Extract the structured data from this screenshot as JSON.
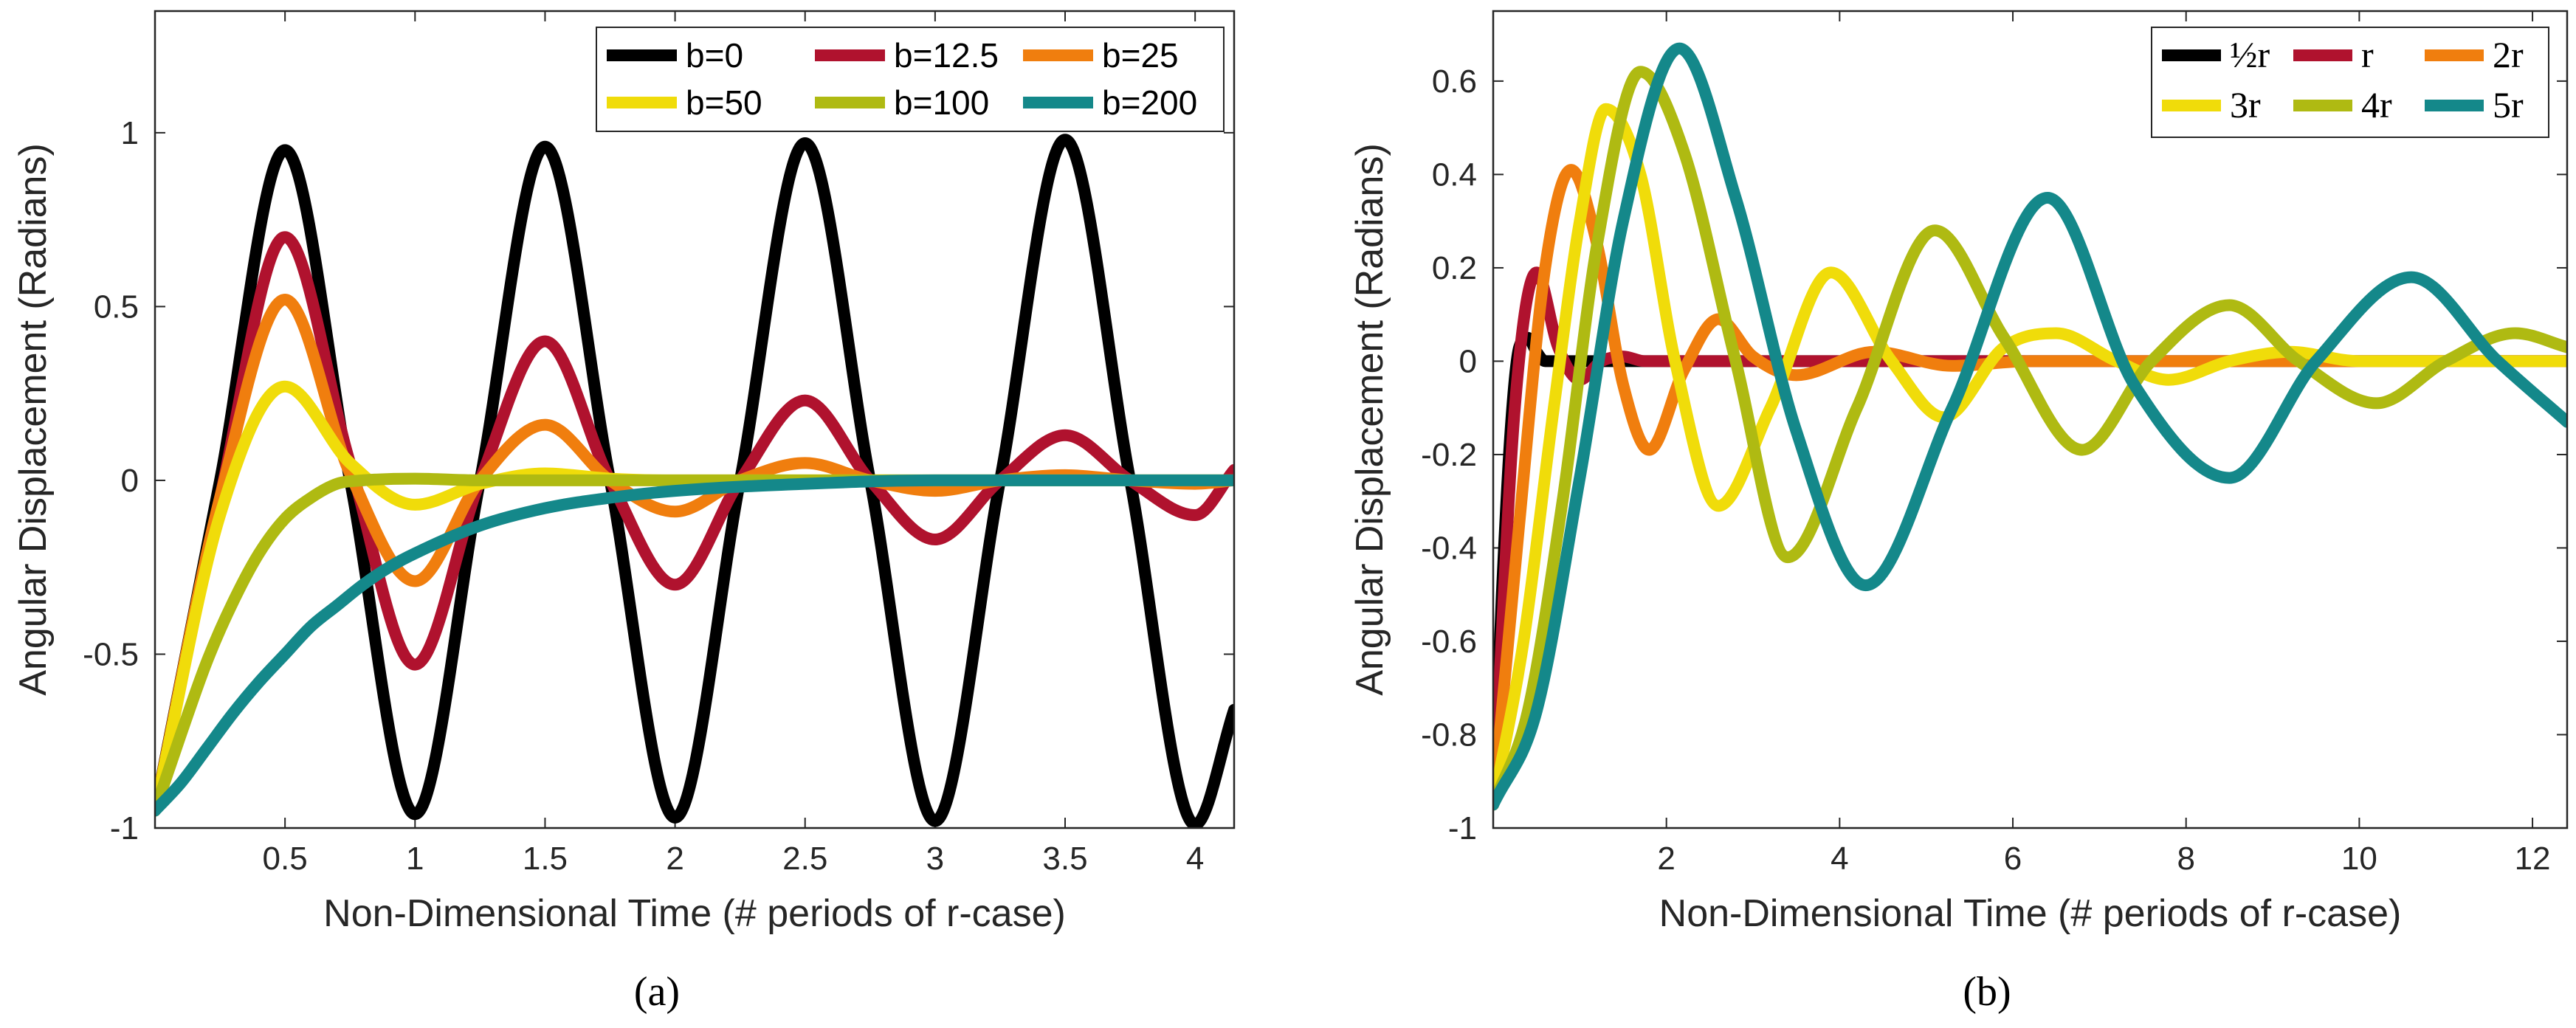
{
  "chart_data": [
    {
      "type": "line",
      "caption": "(a)",
      "xlabel": "Non-Dimensional Time (# periods of r-case)",
      "ylabel": "Angular Displacement (Radians)",
      "xlim": [
        0,
        4.15
      ],
      "ylim": [
        -1,
        1.35
      ],
      "xticks": [
        0.5,
        1,
        1.5,
        2,
        2.5,
        3,
        3.5,
        4
      ],
      "xtick_labels": [
        "0.5",
        "1",
        "1.5",
        "2",
        "2.5",
        "3",
        "3.5",
        "4"
      ],
      "yticks": [
        -1,
        -0.5,
        0,
        0.5,
        1
      ],
      "ytick_labels": [
        "-1",
        "-0.5",
        "0",
        "0.5",
        "1"
      ],
      "legend_position": "top-right",
      "series": [
        {
          "name": "b=0",
          "color": "#000000",
          "x": [
            0,
            0.25,
            0.5,
            0.75,
            1,
            1.25,
            1.5,
            1.75,
            2,
            2.25,
            2.5,
            2.75,
            3,
            3.25,
            3.5,
            3.75,
            4,
            4.15
          ],
          "y": [
            -0.95,
            0,
            0.95,
            0,
            -0.96,
            0,
            0.96,
            0,
            -0.97,
            0,
            0.97,
            0,
            -0.98,
            0,
            0.98,
            0,
            -0.99,
            -0.66
          ]
        },
        {
          "name": "b=12.5",
          "color": "#B0122E",
          "x": [
            0,
            0.25,
            0.5,
            0.75,
            1,
            1.25,
            1.5,
            1.75,
            2,
            2.25,
            2.5,
            2.75,
            3,
            3.25,
            3.5,
            3.75,
            4,
            4.15
          ],
          "y": [
            -0.95,
            -0.05,
            0.7,
            0.05,
            -0.53,
            0,
            0.4,
            0,
            -0.3,
            0,
            0.23,
            0,
            -0.17,
            0,
            0.13,
            0,
            -0.1,
            0.03
          ]
        },
        {
          "name": "b=25",
          "color": "#F07E0E",
          "x": [
            0,
            0.25,
            0.5,
            0.75,
            1,
            1.25,
            1.5,
            1.75,
            2,
            2.25,
            2.5,
            2.75,
            3,
            3.25,
            3.5,
            3.75,
            4,
            4.15
          ],
          "y": [
            -0.95,
            -0.05,
            0.52,
            0.02,
            -0.29,
            0,
            0.16,
            0,
            -0.09,
            0,
            0.05,
            0,
            -0.03,
            0,
            0.015,
            0,
            -0.01,
            0
          ]
        },
        {
          "name": "b=50",
          "color": "#F0DC0A",
          "x": [
            0,
            0.25,
            0.5,
            0.75,
            1,
            1.25,
            1.5,
            1.75,
            2,
            2.5,
            3,
            3.5,
            4,
            4.15
          ],
          "y": [
            -0.95,
            -0.1,
            0.27,
            0.05,
            -0.07,
            -0.01,
            0.02,
            0.005,
            0,
            0,
            0,
            0,
            0,
            0
          ]
        },
        {
          "name": "b=100",
          "color": "#AFBA12",
          "x": [
            0,
            0.1,
            0.2,
            0.3,
            0.4,
            0.5,
            0.6,
            0.7,
            0.8,
            1,
            1.25,
            1.5,
            2,
            2.5,
            3,
            3.5,
            4,
            4.15
          ],
          "y": [
            -0.95,
            -0.73,
            -0.52,
            -0.35,
            -0.21,
            -0.11,
            -0.05,
            -0.01,
            0,
            0.005,
            0,
            0,
            0,
            0,
            0,
            0,
            0,
            0
          ]
        },
        {
          "name": "b=200",
          "color": "#14888A",
          "x": [
            0,
            0.1,
            0.2,
            0.3,
            0.4,
            0.5,
            0.6,
            0.7,
            0.8,
            0.9,
            1,
            1.25,
            1.5,
            1.75,
            2,
            2.5,
            3,
            3.5,
            4,
            4.15
          ],
          "y": [
            -0.95,
            -0.87,
            -0.77,
            -0.67,
            -0.58,
            -0.5,
            -0.42,
            -0.36,
            -0.3,
            -0.25,
            -0.21,
            -0.13,
            -0.08,
            -0.05,
            -0.03,
            -0.01,
            0,
            0,
            0,
            0
          ]
        }
      ]
    },
    {
      "type": "line",
      "caption": "(b)",
      "xlabel": "Non-Dimensional Time (# periods of r-case)",
      "ylabel": "Angular Displacement (Radians)",
      "xlim": [
        0,
        12.4
      ],
      "ylim": [
        -1,
        0.75
      ],
      "xticks": [
        2,
        4,
        6,
        8,
        10,
        12
      ],
      "xtick_labels": [
        "2",
        "4",
        "6",
        "8",
        "10",
        "12"
      ],
      "yticks": [
        -1,
        -0.8,
        -0.6,
        -0.4,
        -0.2,
        0,
        0.2,
        0.4,
        0.6
      ],
      "ytick_labels": [
        "-1",
        "-0.8",
        "-0.6",
        "-0.4",
        "-0.2",
        "0",
        "0.2",
        "0.4",
        "0.6"
      ],
      "legend_position": "top-right",
      "series": [
        {
          "name": "½r",
          "color": "#000000",
          "x": [
            0,
            0.1,
            0.2,
            0.3,
            0.4,
            0.5,
            0.6,
            0.8,
            1,
            1.5,
            2,
            4,
            6,
            8,
            10,
            12.4
          ],
          "y": [
            -0.95,
            -0.5,
            -0.15,
            0.03,
            0.05,
            0.02,
            0,
            0,
            0,
            0,
            0,
            0,
            0,
            0,
            0,
            0
          ]
        },
        {
          "name": "r",
          "color": "#B0122E",
          "x": [
            0,
            0.25,
            0.5,
            0.75,
            1,
            1.25,
            1.5,
            1.75,
            2,
            3,
            4,
            6,
            8,
            12.4
          ],
          "y": [
            -0.95,
            -0.1,
            0.19,
            0.03,
            -0.04,
            0,
            0.01,
            0,
            0,
            0,
            0,
            0,
            0,
            0
          ]
        },
        {
          "name": "2r",
          "color": "#F07E0E",
          "x": [
            0,
            0.3,
            0.6,
            0.9,
            1.2,
            1.5,
            1.8,
            2.2,
            2.6,
            3.0,
            3.5,
            4.4,
            5.3,
            6.2,
            8,
            10,
            12.4
          ],
          "y": [
            -0.95,
            -0.35,
            0.2,
            0.41,
            0.25,
            -0.05,
            -0.19,
            -0.02,
            0.09,
            0.01,
            -0.03,
            0.02,
            -0.01,
            0,
            0,
            0,
            0
          ]
        },
        {
          "name": "3r",
          "color": "#F0DC0A",
          "x": [
            0,
            0.35,
            0.7,
            1.0,
            1.3,
            1.7,
            2.1,
            2.6,
            3.2,
            3.9,
            4.6,
            5.2,
            5.9,
            6.5,
            7.2,
            7.8,
            8.5,
            9.2,
            10,
            11,
            12.4
          ],
          "y": [
            -0.95,
            -0.6,
            -0.1,
            0.3,
            0.54,
            0.4,
            0,
            -0.31,
            -0.1,
            0.19,
            0.0,
            -0.12,
            0.03,
            0.06,
            0,
            -0.04,
            0,
            0.02,
            0,
            0,
            0
          ]
        },
        {
          "name": "4r",
          "color": "#AFBA12",
          "x": [
            0,
            0.4,
            0.8,
            1.2,
            1.7,
            2.2,
            2.8,
            3.4,
            4.2,
            5.1,
            5.9,
            6.8,
            7.6,
            8.5,
            9.3,
            10.2,
            11.0,
            11.8,
            12.4
          ],
          "y": [
            -0.95,
            -0.75,
            -0.3,
            0.25,
            0.62,
            0.45,
            0,
            -0.42,
            -0.1,
            0.28,
            0.05,
            -0.19,
            0,
            0.12,
            0,
            -0.09,
            0,
            0.06,
            0.03
          ]
        },
        {
          "name": "5r",
          "color": "#14888A",
          "x": [
            0,
            0.5,
            1.0,
            1.5,
            2.15,
            2.8,
            3.5,
            4.3,
            5.3,
            6.4,
            7.4,
            8.5,
            9.5,
            10.6,
            11.6,
            12.4
          ],
          "y": [
            -0.95,
            -0.75,
            -0.25,
            0.3,
            0.67,
            0.35,
            -0.15,
            -0.48,
            -0.1,
            0.35,
            -0.05,
            -0.25,
            0,
            0.18,
            0,
            -0.13
          ]
        }
      ]
    }
  ]
}
